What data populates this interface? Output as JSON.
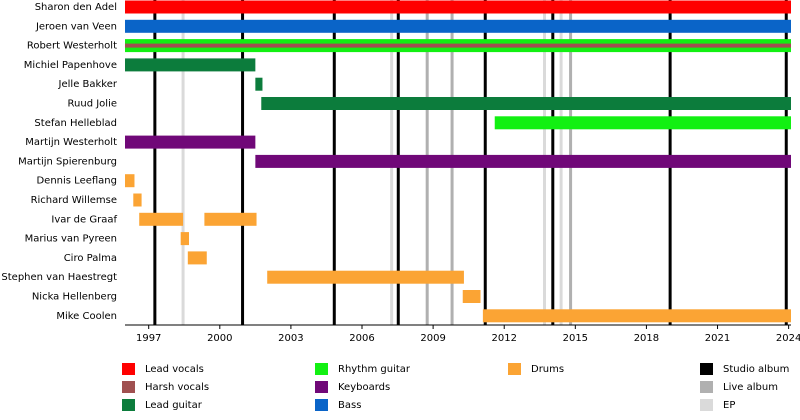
{
  "chart_data": {
    "type": "timeline",
    "categories": [
      "Sharon den Adel",
      "Jeroen van Veen",
      "Robert Westerholt",
      "Michiel Papenhove",
      "Jelle Bakker",
      "Ruud Jolie",
      "Stefan Helleblad",
      "Martijn Westerholt",
      "Martijn Spierenburg",
      "Dennis Leeflang",
      "Richard Willemse",
      "Ivar de Graaf",
      "Marius van Pyreen",
      "Ciro Palma",
      "Stephen van Haestregt",
      "Nicka Hellenberg",
      "Mike Coolen"
    ],
    "xlim": [
      1996,
      2024.1
    ],
    "xticks": [
      1997,
      2000,
      2003,
      2006,
      2009,
      2012,
      2015,
      2018,
      2021,
      2024
    ],
    "series": [
      {
        "name": "Lead vocals",
        "color": "#ff0000",
        "spans": [
          {
            "row": 0,
            "start": 1996,
            "end": 2024.1
          }
        ]
      },
      {
        "name": "Harsh vocals",
        "color": "#a05050",
        "thin": true,
        "spans": [
          {
            "row": 2,
            "start": 1996,
            "end": 2024.1
          }
        ]
      },
      {
        "name": "Lead guitar",
        "color": "#0c7c3c",
        "spans": [
          {
            "row": 3,
            "start": 1996,
            "end": 2001.5
          },
          {
            "row": 4,
            "start": 2001.5,
            "end": 2001.8
          },
          {
            "row": 5,
            "start": 2001.75,
            "end": 2024.1
          }
        ]
      },
      {
        "name": "Rhythm guitar",
        "color": "#12f012",
        "spans": [
          {
            "row": 2,
            "start": 1996,
            "end": 2024.1
          },
          {
            "row": 6,
            "start": 2011.6,
            "end": 2024.1
          }
        ]
      },
      {
        "name": "Keyboards",
        "color": "#700878",
        "spans": [
          {
            "row": 7,
            "start": 1996,
            "end": 2001.5
          },
          {
            "row": 8,
            "start": 2001.5,
            "end": 2024.1
          }
        ]
      },
      {
        "name": "Bass",
        "color": "#0a64c8",
        "spans": [
          {
            "row": 1,
            "start": 1996,
            "end": 2024.1
          }
        ]
      },
      {
        "name": "Drums",
        "color": "#fba434",
        "spans": [
          {
            "row": 9,
            "start": 1996,
            "end": 1996.4
          },
          {
            "row": 10,
            "start": 1996.35,
            "end": 1996.7
          },
          {
            "row": 11,
            "start": 1996.6,
            "end": 1998.45
          },
          {
            "row": 11,
            "start": 1999.35,
            "end": 2001.55
          },
          {
            "row": 12,
            "start": 1998.35,
            "end": 1998.7
          },
          {
            "row": 13,
            "start": 1998.65,
            "end": 1999.45
          },
          {
            "row": 14,
            "start": 2002,
            "end": 2010.3
          },
          {
            "row": 15,
            "start": 2010.25,
            "end": 2011.0
          },
          {
            "row": 16,
            "start": 2011.1,
            "end": 2024.1
          }
        ]
      }
    ],
    "events": [
      {
        "name": "Studio album",
        "color": "#000000",
        "x": [
          1997.26,
          2000.96,
          2004.83,
          2007.53,
          2011.2,
          2014.05,
          2019.0,
          2023.9
        ]
      },
      {
        "name": "Live album",
        "color": "#b0b0b0",
        "x": [
          2008.75,
          2009.8,
          2014.8
        ]
      },
      {
        "name": "EP",
        "color": "#dadada",
        "x": [
          1998.45,
          2007.25,
          2013.7,
          2014.4
        ]
      }
    ]
  }
}
